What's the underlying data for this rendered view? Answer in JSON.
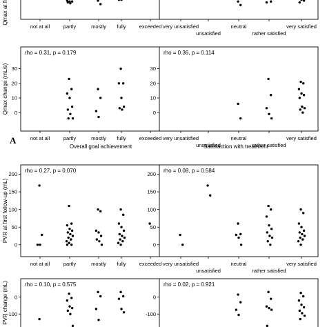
{
  "section_a": {
    "letter": "A",
    "captions": {
      "left": "Overall goal achievement",
      "right": "Satisfaction with treatment"
    }
  },
  "chart_data": [
    {
      "id": "qmax_first_goal",
      "type": "scatter",
      "ylabel": "Qmax at first",
      "annotation": "",
      "categories": [
        "not at all",
        "partly",
        "mostly",
        "fully",
        "exceeded"
      ],
      "yticks": [],
      "ylim": [
        -5,
        17
      ],
      "points": [
        {
          "x": "partly",
          "y": 13
        },
        {
          "x": "partly",
          "y": 12
        },
        {
          "x": "partly",
          "y": 10
        },
        {
          "x": "partly",
          "y": 9
        },
        {
          "x": "partly",
          "y": 9
        },
        {
          "x": "partly",
          "y": 8
        },
        {
          "x": "partly",
          "y": 7
        },
        {
          "x": "mostly",
          "y": 10
        },
        {
          "x": "mostly",
          "y": 6
        },
        {
          "x": "fully",
          "y": 13
        },
        {
          "x": "fully",
          "y": 12
        },
        {
          "x": "fully",
          "y": 11
        },
        {
          "x": "fully",
          "y": 11
        }
      ]
    },
    {
      "id": "qmax_first_satisfaction",
      "type": "scatter",
      "ylabel": "",
      "annotation": "",
      "categories": [
        "very unsatisfied",
        "unsatisfied",
        "neutral",
        "rather satisfied",
        "very satisfied"
      ],
      "yticks": [],
      "ylim": [
        -5,
        17
      ],
      "points": [
        {
          "x": "neutral",
          "y": 9
        },
        {
          "x": "neutral",
          "y": 5
        },
        {
          "x": "rather satisfied",
          "y": 13
        },
        {
          "x": "rather satisfied",
          "y": 9
        },
        {
          "x": "rather satisfied",
          "y": 8
        },
        {
          "x": "very satisfied",
          "y": 14
        },
        {
          "x": "very satisfied",
          "y": 13
        },
        {
          "x": "very satisfied",
          "y": 12
        },
        {
          "x": "very satisfied",
          "y": 11
        },
        {
          "x": "very satisfied",
          "y": 10
        },
        {
          "x": "very satisfied",
          "y": 8
        }
      ]
    },
    {
      "id": "qmax_change_goal",
      "type": "scatter",
      "ylabel": "Qmax change (mL/s)",
      "annotation": "rho = 0.31, p = 0.179",
      "categories": [
        "not at all",
        "partly",
        "mostly",
        "fully",
        "exceeded"
      ],
      "yticks": [
        "0",
        "10",
        "20",
        "30"
      ],
      "ylim": [
        -7,
        35
      ],
      "points": [
        {
          "x": "partly",
          "y": 23
        },
        {
          "x": "partly",
          "y": 16
        },
        {
          "x": "partly",
          "y": 13
        },
        {
          "x": "partly",
          "y": 10
        },
        {
          "x": "partly",
          "y": 4
        },
        {
          "x": "partly",
          "y": 2
        },
        {
          "x": "partly",
          "y": -1
        },
        {
          "x": "partly",
          "y": -4
        },
        {
          "x": "partly",
          "y": -4
        },
        {
          "x": "mostly",
          "y": 16
        },
        {
          "x": "mostly",
          "y": 10
        },
        {
          "x": "mostly",
          "y": 1
        },
        {
          "x": "mostly",
          "y": -3
        },
        {
          "x": "fully",
          "y": 30
        },
        {
          "x": "fully",
          "y": 20
        },
        {
          "x": "fully",
          "y": 20
        },
        {
          "x": "fully",
          "y": 10
        },
        {
          "x": "fully",
          "y": 4
        },
        {
          "x": "fully",
          "y": 3
        },
        {
          "x": "fully",
          "y": 2
        }
      ]
    },
    {
      "id": "qmax_change_satisfaction",
      "type": "scatter",
      "ylabel": "",
      "annotation": "rho = 0.36, p = 0.114",
      "categories": [
        "very unsatisfied",
        "unsatisfied",
        "neutral",
        "rather satisfied",
        "very satisfied"
      ],
      "yticks": [
        "0",
        "10",
        "20",
        "30"
      ],
      "ylim": [
        -7,
        35
      ],
      "points": [
        {
          "x": "neutral",
          "y": 6
        },
        {
          "x": "neutral",
          "y": -4
        },
        {
          "x": "rather satisfied",
          "y": 23
        },
        {
          "x": "rather satisfied",
          "y": 12
        },
        {
          "x": "rather satisfied",
          "y": 3
        },
        {
          "x": "rather satisfied",
          "y": -1
        },
        {
          "x": "rather satisfied",
          "y": -4
        },
        {
          "x": "very satisfied",
          "y": 21
        },
        {
          "x": "very satisfied",
          "y": 20
        },
        {
          "x": "very satisfied",
          "y": 16
        },
        {
          "x": "very satisfied",
          "y": 13
        },
        {
          "x": "very satisfied",
          "y": 12
        },
        {
          "x": "very satisfied",
          "y": 10
        },
        {
          "x": "very satisfied",
          "y": 4
        },
        {
          "x": "very satisfied",
          "y": 3
        },
        {
          "x": "very satisfied",
          "y": 2
        },
        {
          "x": "very satisfied",
          "y": 0
        }
      ]
    },
    {
      "id": "pvr_first_goal",
      "type": "scatter",
      "ylabel": "PVR at first follow-up (mL)",
      "annotation": "rho = 0.27, p = 0.070",
      "categories": [
        "not at all",
        "partly",
        "mostly",
        "fully",
        "exceeded"
      ],
      "yticks": [
        "0",
        "50",
        "100",
        "150",
        "200"
      ],
      "ylim": [
        -20,
        205
      ],
      "points": [
        {
          "x": "not at all",
          "y": 168
        },
        {
          "x": "not at all",
          "y": 28
        },
        {
          "x": "not at all",
          "y": 0
        },
        {
          "x": "not at all",
          "y": 0
        },
        {
          "x": "partly",
          "y": 110
        },
        {
          "x": "partly",
          "y": 60
        },
        {
          "x": "partly",
          "y": 55
        },
        {
          "x": "partly",
          "y": 45
        },
        {
          "x": "partly",
          "y": 40
        },
        {
          "x": "partly",
          "y": 35
        },
        {
          "x": "partly",
          "y": 30
        },
        {
          "x": "partly",
          "y": 25
        },
        {
          "x": "partly",
          "y": 20
        },
        {
          "x": "partly",
          "y": 15
        },
        {
          "x": "partly",
          "y": 10
        },
        {
          "x": "partly",
          "y": 5
        },
        {
          "x": "partly",
          "y": 0
        },
        {
          "x": "partly",
          "y": 0
        },
        {
          "x": "mostly",
          "y": 100
        },
        {
          "x": "mostly",
          "y": 95
        },
        {
          "x": "mostly",
          "y": 40
        },
        {
          "x": "mostly",
          "y": 35
        },
        {
          "x": "mostly",
          "y": 25
        },
        {
          "x": "mostly",
          "y": 15
        },
        {
          "x": "mostly",
          "y": 10
        },
        {
          "x": "mostly",
          "y": 0
        },
        {
          "x": "fully",
          "y": 100
        },
        {
          "x": "fully",
          "y": 85
        },
        {
          "x": "fully",
          "y": 60
        },
        {
          "x": "fully",
          "y": 50
        },
        {
          "x": "fully",
          "y": 40
        },
        {
          "x": "fully",
          "y": 30
        },
        {
          "x": "fully",
          "y": 25
        },
        {
          "x": "fully",
          "y": 20
        },
        {
          "x": "fully",
          "y": 15
        },
        {
          "x": "fully",
          "y": 10
        },
        {
          "x": "fully",
          "y": 5
        },
        {
          "x": "fully",
          "y": 0
        },
        {
          "x": "exceeded",
          "y": 60
        }
      ]
    },
    {
      "id": "pvr_first_satisfaction",
      "type": "scatter",
      "ylabel": "",
      "annotation": "rho = 0.08, p = 0.584",
      "categories": [
        "very unsatisfied",
        "unsatisfied",
        "neutral",
        "rather satisfied",
        "very satisfied"
      ],
      "yticks": [
        "0",
        "50",
        "100",
        "150",
        "200"
      ],
      "ylim": [
        -20,
        205
      ],
      "points": [
        {
          "x": "very unsatisfied",
          "y": 28
        },
        {
          "x": "very unsatisfied",
          "y": 0
        },
        {
          "x": "unsatisfied",
          "y": 168
        },
        {
          "x": "unsatisfied",
          "y": 140
        },
        {
          "x": "neutral",
          "y": 60
        },
        {
          "x": "neutral",
          "y": 30
        },
        {
          "x": "neutral",
          "y": 28
        },
        {
          "x": "neutral",
          "y": 20
        },
        {
          "x": "neutral",
          "y": 0
        },
        {
          "x": "rather satisfied",
          "y": 110
        },
        {
          "x": "rather satisfied",
          "y": 100
        },
        {
          "x": "rather satisfied",
          "y": 80
        },
        {
          "x": "rather satisfied",
          "y": 55
        },
        {
          "x": "rather satisfied",
          "y": 45
        },
        {
          "x": "rather satisfied",
          "y": 35
        },
        {
          "x": "rather satisfied",
          "y": 25
        },
        {
          "x": "rather satisfied",
          "y": 20
        },
        {
          "x": "rather satisfied",
          "y": 10
        },
        {
          "x": "rather satisfied",
          "y": 0
        },
        {
          "x": "very satisfied",
          "y": 100
        },
        {
          "x": "very satisfied",
          "y": 90
        },
        {
          "x": "very satisfied",
          "y": 60
        },
        {
          "x": "very satisfied",
          "y": 50
        },
        {
          "x": "very satisfied",
          "y": 40
        },
        {
          "x": "very satisfied",
          "y": 35
        },
        {
          "x": "very satisfied",
          "y": 30
        },
        {
          "x": "very satisfied",
          "y": 25
        },
        {
          "x": "very satisfied",
          "y": 20
        },
        {
          "x": "very satisfied",
          "y": 15
        },
        {
          "x": "very satisfied",
          "y": 10
        },
        {
          "x": "very satisfied",
          "y": 0
        }
      ]
    },
    {
      "id": "pvr_change_goal",
      "type": "scatter",
      "ylabel": "PVR change (mL)",
      "annotation": "rho = 0.10, p = 0.575",
      "categories": [
        "not at all",
        "partly",
        "mostly",
        "fully",
        "exceeded"
      ],
      "yticks": [
        "0",
        "-100",
        "-200"
      ],
      "ylim": [
        -250,
        60
      ],
      "points": [
        {
          "x": "not at all",
          "y": -130
        },
        {
          "x": "partly",
          "y": 20
        },
        {
          "x": "partly",
          "y": -5
        },
        {
          "x": "partly",
          "y": -20
        },
        {
          "x": "partly",
          "y": -55
        },
        {
          "x": "partly",
          "y": -65
        },
        {
          "x": "partly",
          "y": -80
        },
        {
          "x": "partly",
          "y": -100
        },
        {
          "x": "partly",
          "y": -170
        },
        {
          "x": "partly",
          "y": -235
        },
        {
          "x": "mostly",
          "y": 30
        },
        {
          "x": "mostly",
          "y": 5
        },
        {
          "x": "mostly",
          "y": -70
        },
        {
          "x": "mostly",
          "y": -135
        },
        {
          "x": "mostly",
          "y": -235
        },
        {
          "x": "fully",
          "y": 30
        },
        {
          "x": "fully",
          "y": 5
        },
        {
          "x": "fully",
          "y": -10
        },
        {
          "x": "fully",
          "y": -70
        },
        {
          "x": "fully",
          "y": -90
        }
      ]
    },
    {
      "id": "pvr_change_satisfaction",
      "type": "scatter",
      "ylabel": "",
      "annotation": "rho = 0.02, p = 0.921",
      "categories": [
        "very unsatisfied",
        "unsatisfied",
        "neutral",
        "rather satisfied",
        "very satisfied"
      ],
      "yticks": [
        "0",
        "-100",
        "-200"
      ],
      "ylim": [
        -250,
        60
      ],
      "points": [
        {
          "x": "neutral",
          "y": 15
        },
        {
          "x": "neutral",
          "y": -30
        },
        {
          "x": "neutral",
          "y": -75
        },
        {
          "x": "neutral",
          "y": -105
        },
        {
          "x": "rather satisfied",
          "y": 30
        },
        {
          "x": "rather satisfied",
          "y": -10
        },
        {
          "x": "rather satisfied",
          "y": -55
        },
        {
          "x": "rather satisfied",
          "y": -65
        },
        {
          "x": "rather satisfied",
          "y": -75
        },
        {
          "x": "rather satisfied",
          "y": -170
        },
        {
          "x": "rather satisfied",
          "y": -200
        },
        {
          "x": "very satisfied",
          "y": 25
        },
        {
          "x": "very satisfied",
          "y": 5
        },
        {
          "x": "very satisfied",
          "y": -20
        },
        {
          "x": "very satisfied",
          "y": -45
        },
        {
          "x": "very satisfied",
          "y": -60
        },
        {
          "x": "very satisfied",
          "y": -80
        },
        {
          "x": "very satisfied",
          "y": -95
        },
        {
          "x": "very satisfied",
          "y": -110
        },
        {
          "x": "very satisfied",
          "y": -130
        },
        {
          "x": "very satisfied",
          "y": -200
        }
      ]
    }
  ]
}
